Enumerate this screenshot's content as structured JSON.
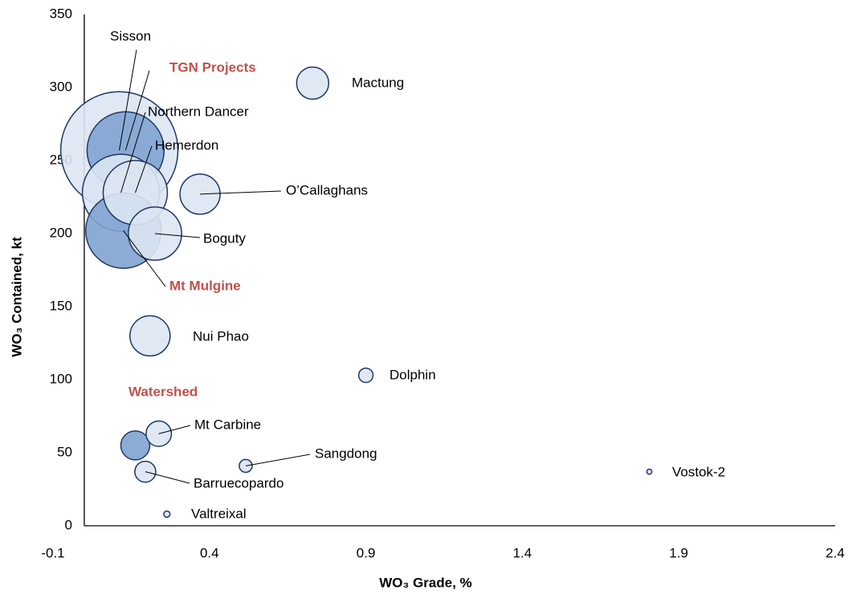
{
  "chart_data": {
    "type": "bubble",
    "xlabel": "WO₃ Grade, %",
    "ylabel": "WO₃ Contained, kt",
    "xlim": [
      -0.1,
      2.4
    ],
    "xticks": [
      -0.1,
      0.4,
      0.9,
      1.4,
      1.9,
      2.4
    ],
    "ylim": [
      0,
      350
    ],
    "yticks": [
      0,
      50,
      100,
      150,
      200,
      250,
      300,
      350
    ],
    "grid": false,
    "series": [
      {
        "names": [
          "Sisson",
          "TGN Projects",
          "Northern Dancer",
          "Mt Mulgine",
          "Hemerdon",
          "Boguty",
          "O’Callaghans",
          "Nui Phao",
          "Mactung",
          "Watershed",
          "Mt Carbine",
          "Barruecopardo",
          "Dolphin",
          "Sangdong",
          "Valtreixal",
          "Vostok-2"
        ],
        "x": [
          0.112,
          0.132,
          0.117,
          0.125,
          0.163,
          0.226,
          0.37,
          0.21,
          0.73,
          0.163,
          0.238,
          0.195,
          0.9,
          0.516,
          0.264,
          1.806
        ],
        "values": [
          257,
          257,
          228,
          202,
          228,
          200,
          227,
          130,
          303,
          55,
          63,
          37,
          103,
          41,
          8,
          37
        ],
        "sizes": [
          213,
          92,
          92,
          88,
          64,
          44,
          25,
          25,
          16,
          13,
          10,
          6.8,
          3.2,
          2.6,
          0.6,
          0.4
        ],
        "colors": [
          "#dce6f2",
          "#7fa3d0",
          "#dce6f2",
          "#7fa3d0",
          "#dce6f2",
          "#dce6f2",
          "#dce6f2",
          "#dce6f2",
          "#dce6f2",
          "#7fa3d0",
          "#dce6f2",
          "#dce6f2",
          "#dce6f2",
          "#dce6f2",
          "#dce6f2",
          "#dce6f2"
        ],
        "label_colors": [
          "#000000",
          "#c0504d",
          "#000000",
          "#c0504d",
          "#000000",
          "#000000",
          "#000000",
          "#000000",
          "#000000",
          "#c0504d",
          "#000000",
          "#000000",
          "#000000",
          "#000000",
          "#000000",
          "#000000"
        ]
      }
    ]
  }
}
